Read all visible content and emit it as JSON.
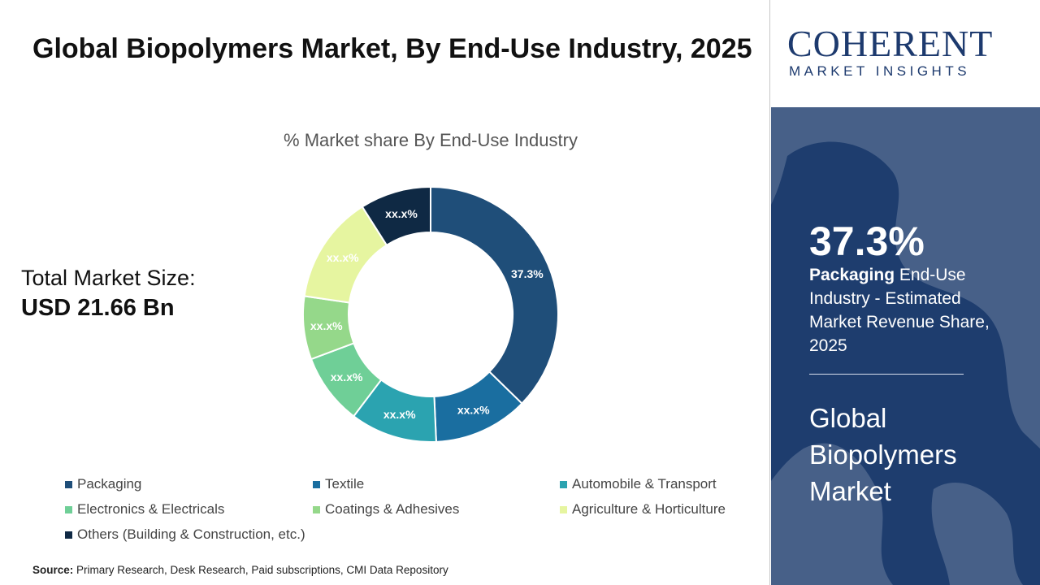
{
  "title": "Global Biopolymers Market, By End-Use Industry, 2025",
  "market_size": {
    "label": "Total Market Size:",
    "value": "USD 21.66 Bn"
  },
  "source": {
    "label": "Source:",
    "text": "Primary Research, Desk Research, Paid subscriptions, CMI Data Repository"
  },
  "logo": {
    "main": "COHERENT",
    "sub": "MARKET INSIGHTS"
  },
  "highlight": {
    "value": "37.3%",
    "segment": "Packaging",
    "description": "End-Use Industry - Estimated Market Revenue Share, 2025"
  },
  "market_name": "Global Biopolymers Market",
  "chart_data": {
    "type": "pie",
    "variant": "donut",
    "title": "% Market share By End-Use Industry",
    "legend_position": "bottom",
    "slices": [
      {
        "name": "Packaging",
        "value": 37.3,
        "label": "37.3%",
        "color": "#1f4e79"
      },
      {
        "name": "Textile",
        "value": 12.0,
        "label": "xx.x%",
        "color": "#1a6ea0"
      },
      {
        "name": "Automobile & Transport",
        "value": 11.0,
        "label": "xx.x%",
        "color": "#2ba3b0"
      },
      {
        "name": "Electronics & Electricals",
        "value": 9.0,
        "label": "xx.x%",
        "color": "#6fcf97"
      },
      {
        "name": "Coatings & Adhesives",
        "value": 8.0,
        "label": "xx.x%",
        "color": "#95d88a"
      },
      {
        "name": "Agriculture & Horticulture",
        "value": 13.7,
        "label": "xx.x%",
        "color": "#e6f5a0"
      },
      {
        "name": "Others (Building & Construction, etc.)",
        "value": 9.0,
        "label": "xx.x%",
        "color": "#0f2944"
      }
    ]
  },
  "colors": {
    "side_panel": "#1e3d6e",
    "title_text": "#111111"
  }
}
